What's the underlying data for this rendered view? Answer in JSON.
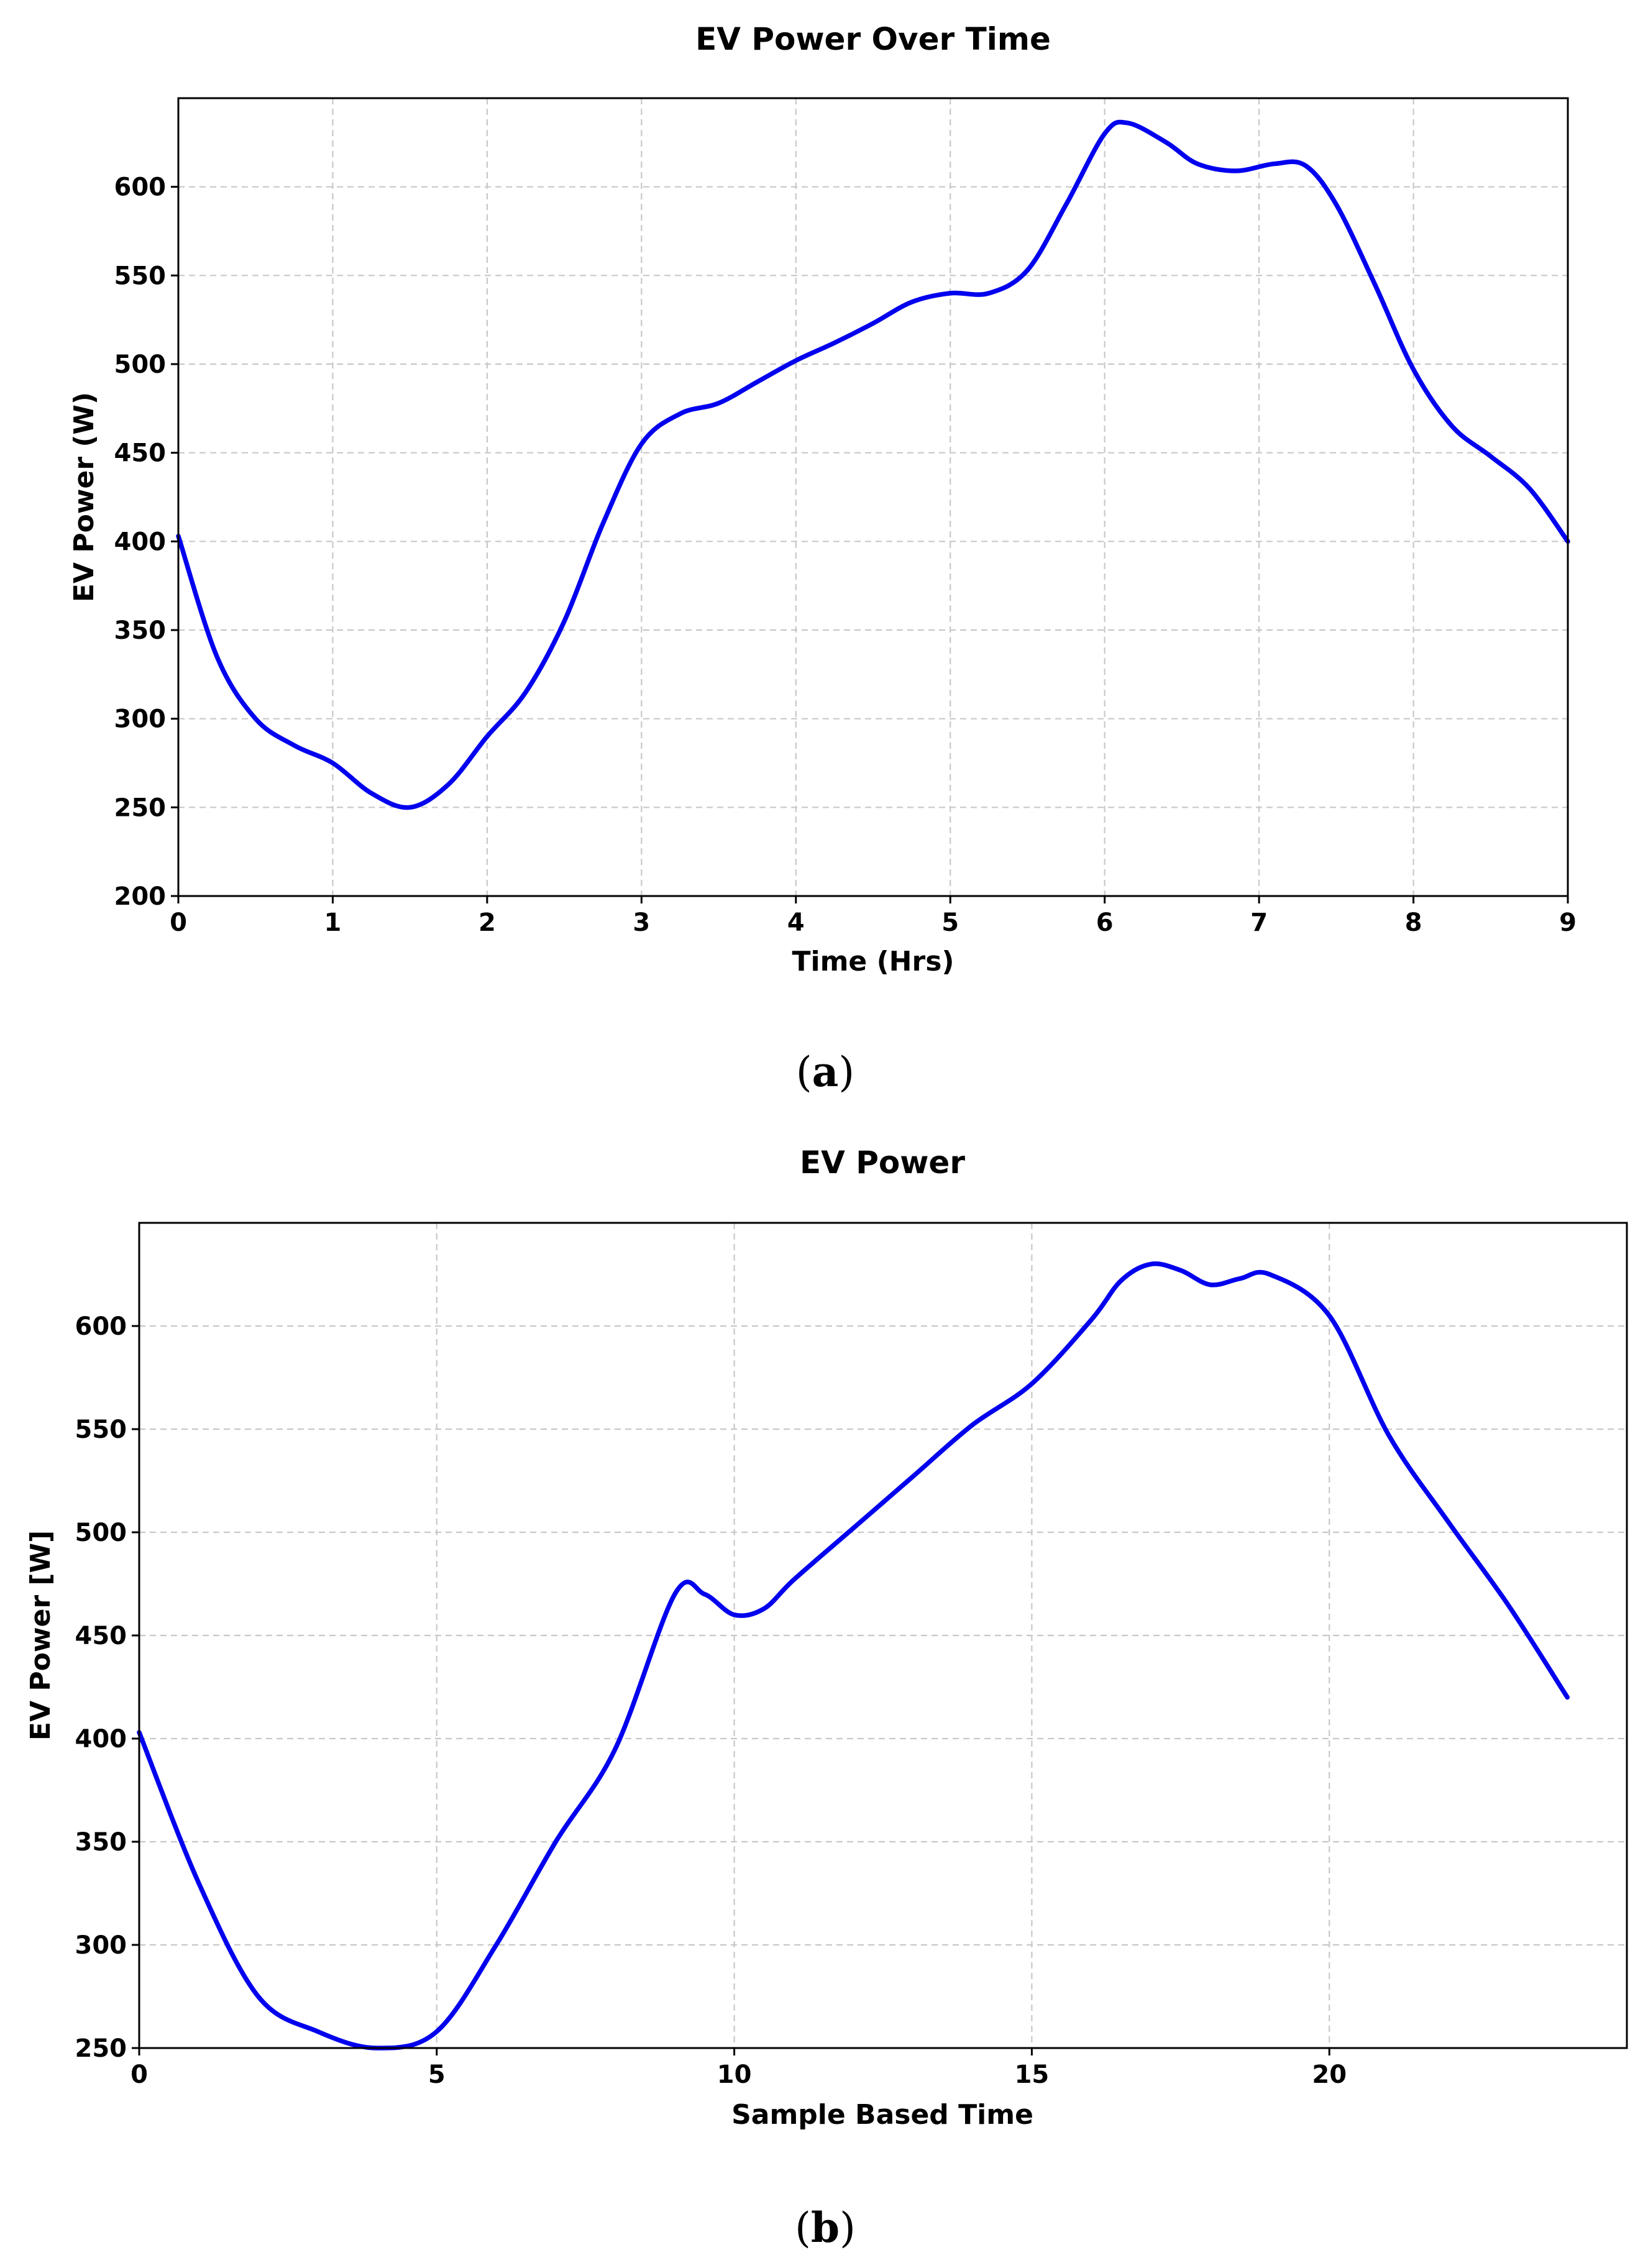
{
  "chart_data": [
    {
      "type": "line",
      "title": "EV Power Over Time",
      "xlabel": "Time (Hrs)",
      "ylabel": "EV Power (W)",
      "xlim": [
        0,
        9
      ],
      "ylim": [
        200,
        650
      ],
      "xticks": [
        0,
        1,
        2,
        3,
        4,
        5,
        6,
        7,
        8,
        9
      ],
      "yticks": [
        200,
        250,
        300,
        350,
        400,
        450,
        500,
        550,
        600
      ],
      "grid": true,
      "caption": "a",
      "color": "#0000ee",
      "series": [
        {
          "x": [
            0,
            0.25,
            0.5,
            0.75,
            1,
            1.25,
            1.5,
            1.75,
            2,
            2.25,
            2.5,
            2.75,
            3,
            3.25,
            3.5,
            3.75,
            4,
            4.25,
            4.5,
            4.75,
            5,
            5.25,
            5.5,
            5.75,
            6,
            6.15,
            6.4,
            6.6,
            6.85,
            7.1,
            7.3,
            7.5,
            7.75,
            8,
            8.25,
            8.5,
            8.75,
            9
          ],
          "y": [
            403,
            335,
            300,
            285,
            275,
            258,
            250,
            263,
            290,
            315,
            355,
            410,
            455,
            472,
            478,
            490,
            502,
            512,
            523,
            535,
            540,
            540,
            553,
            590,
            630,
            636,
            625,
            613,
            609,
            613,
            612,
            590,
            545,
            497,
            465,
            448,
            430,
            400
          ]
        }
      ]
    },
    {
      "type": "line",
      "title": "EV Power",
      "xlabel": "Sample Based Time",
      "ylabel": "EV Power [W]",
      "xlim": [
        0,
        25
      ],
      "ylim": [
        250,
        650
      ],
      "xticks": [
        0,
        5,
        10,
        15,
        20
      ],
      "yticks": [
        250,
        300,
        350,
        400,
        450,
        500,
        550,
        600
      ],
      "grid": true,
      "caption": "b",
      "color": "#0000ee",
      "series": [
        {
          "x": [
            0,
            1,
            2,
            3,
            4,
            5,
            6,
            7,
            8,
            9,
            9.5,
            10,
            10.5,
            11,
            12,
            13,
            14,
            15,
            16,
            16.5,
            17,
            17.5,
            18,
            18.5,
            19,
            20,
            21,
            22,
            23,
            24
          ],
          "y": [
            403,
            330,
            275,
            258,
            250,
            258,
            300,
            350,
            395,
            470,
            470,
            460,
            463,
            477,
            502,
            527,
            552,
            572,
            603,
            622,
            630,
            627,
            620,
            623,
            625,
            605,
            547,
            505,
            465,
            420
          ]
        }
      ]
    }
  ]
}
